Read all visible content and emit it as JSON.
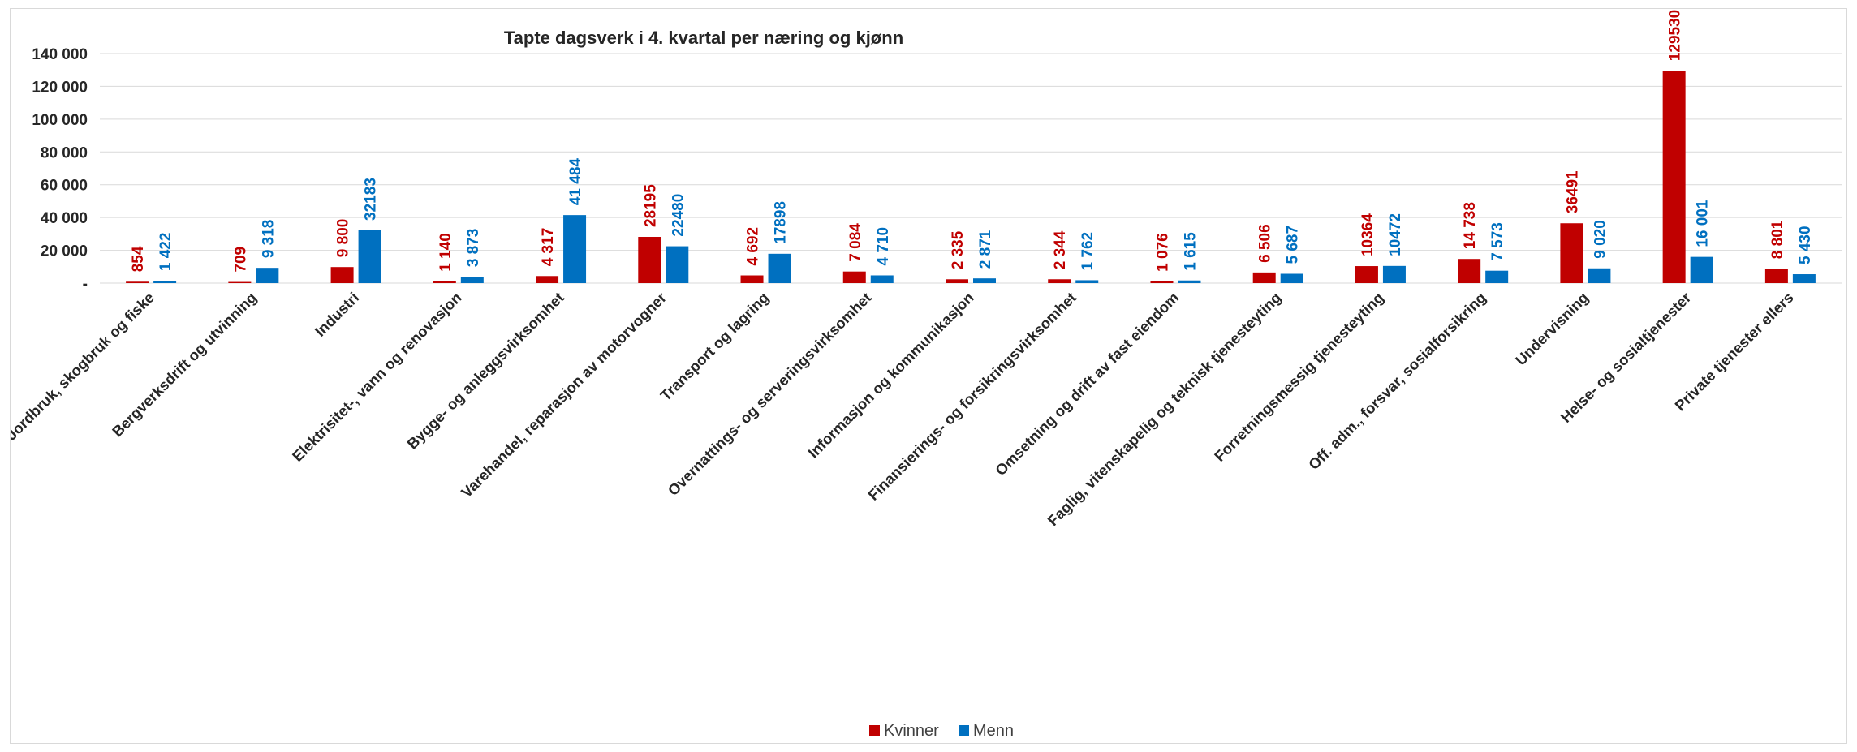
{
  "chart_data": {
    "type": "bar",
    "title": "Tapte dagsverk i 4. kvartal per næring og kjønn",
    "categories": [
      "Jordbruk, skogbruk og fiske",
      "Bergverksdrift og utvinning",
      "Industri",
      "Elektrisitet-, vann og renovasjon",
      "Bygge- og anleggsvirksomhet",
      "Varehandel, reparasjon av motorvogner",
      "Transport og lagring",
      "Overnattings- og serveringsvirksomhet",
      "Informasjon og kommunikasjon",
      "Finansierings- og forsikringsvirksomhet",
      "Omsetning og drift av fast eiendom",
      "Faglig, vitenskapelig og teknisk tjenesteyting",
      "Forretningsmessig tjenesteyting",
      "Off. adm., forsvar, sosialforsikring",
      "Undervisning",
      "Helse- og sosialtjenester",
      "Private tjenester ellers"
    ],
    "series": [
      {
        "name": "Kvinner",
        "color": "#C00000",
        "values": [
          854,
          709,
          9800,
          1140,
          4317,
          28195,
          4692,
          7084,
          2335,
          2344,
          1076,
          6506,
          10364,
          14738,
          36491,
          129530,
          8801
        ],
        "labels": [
          "854",
          "709",
          "9 800",
          "1 140",
          "4 317",
          "28195",
          "4 692",
          "7 084",
          "2 335",
          "2 344",
          "1 076",
          "6 506",
          "10364",
          "14 738",
          "36491",
          "129530",
          "8 801"
        ]
      },
      {
        "name": "Menn",
        "color": "#0070C0",
        "values": [
          1422,
          9318,
          32183,
          3873,
          41484,
          22480,
          17898,
          4710,
          2871,
          1762,
          1615,
          5687,
          10472,
          7573,
          9020,
          16001,
          5430
        ],
        "labels": [
          "1 422",
          "9 318",
          "32183",
          "3 873",
          "41 484",
          "22480",
          "17898",
          "4 710",
          "2 871",
          "1 762",
          "1 615",
          "5 687",
          "10472",
          "7 573",
          "9 020",
          "16 001",
          "5 430"
        ]
      }
    ],
    "ylim": [
      0,
      140000
    ],
    "yticks": [
      0,
      20000,
      40000,
      60000,
      80000,
      100000,
      120000,
      140000
    ],
    "ytick_labels": [
      "-",
      "20 000",
      "40 000",
      "60 000",
      "80 000",
      "100 000",
      "120 000",
      "140 000"
    ],
    "grid": true,
    "legend_position": "bottom"
  }
}
